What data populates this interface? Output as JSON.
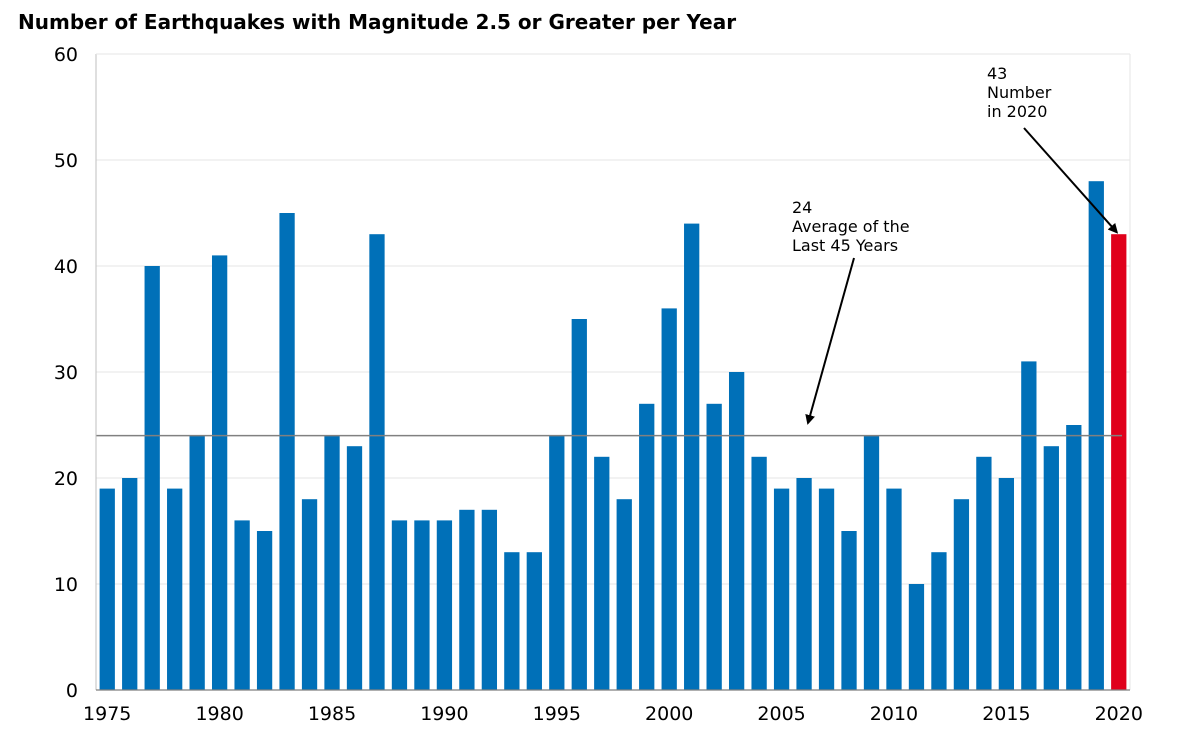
{
  "chart_data": {
    "type": "bar",
    "title": "Number of Earthquakes with Magnitude 2.5 or Greater per Year",
    "xlabel": "",
    "ylabel": "",
    "ylim": [
      0,
      60
    ],
    "yticks": [
      0,
      10,
      20,
      30,
      40,
      50,
      60
    ],
    "xticks": [
      1975,
      1980,
      1985,
      1990,
      1995,
      2000,
      2005,
      2010,
      2015,
      2020
    ],
    "grid": true,
    "categories": [
      1975,
      1976,
      1977,
      1978,
      1979,
      1980,
      1981,
      1982,
      1983,
      1984,
      1985,
      1986,
      1987,
      1988,
      1989,
      1990,
      1991,
      1992,
      1993,
      1994,
      1995,
      1996,
      1997,
      1998,
      1999,
      2000,
      2001,
      2002,
      2003,
      2004,
      2005,
      2006,
      2007,
      2008,
      2009,
      2010,
      2011,
      2012,
      2013,
      2014,
      2015,
      2016,
      2017,
      2018,
      2019,
      2020
    ],
    "values": [
      19,
      20,
      40,
      19,
      24,
      41,
      16,
      15,
      45,
      18,
      24,
      23,
      43,
      16,
      16,
      16,
      17,
      17,
      13,
      13,
      24,
      35,
      22,
      18,
      27,
      36,
      44,
      27,
      30,
      22,
      19,
      20,
      19,
      15,
      24,
      19,
      10,
      13,
      18,
      22,
      20,
      31,
      23,
      25,
      48,
      43
    ],
    "bar_color": "#0070b8",
    "highlight_color": "#e0001b",
    "highlight_category": 2020,
    "average": {
      "value": 24,
      "line_color": "#808080",
      "label_lines": [
        "24",
        "Average of the",
        "Last 45 Years"
      ]
    },
    "highlight_annotation": {
      "label_lines": [
        "43",
        "Number",
        "in 2020"
      ]
    }
  }
}
